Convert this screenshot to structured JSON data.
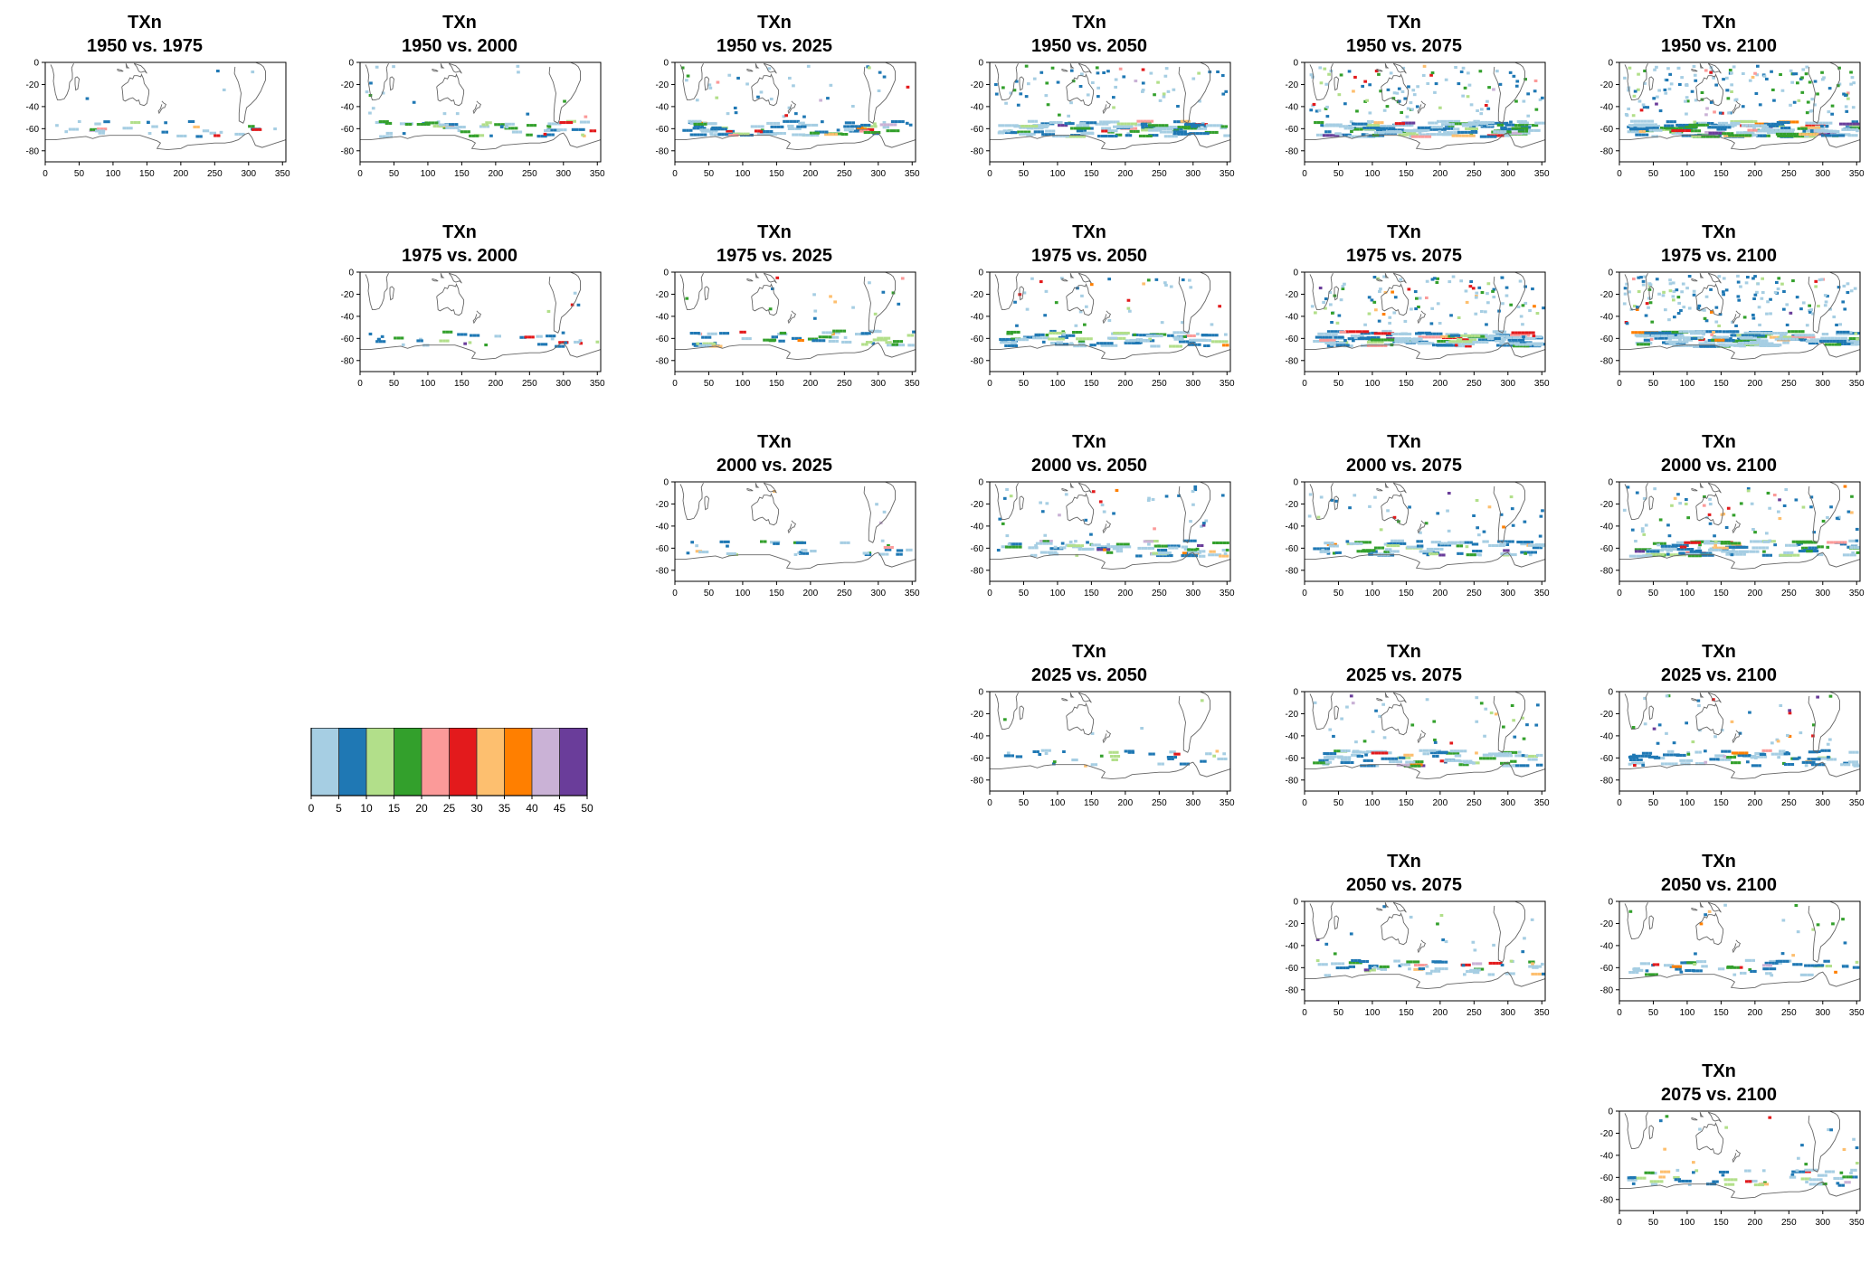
{
  "chart_data": {
    "type": "heatmap",
    "variable": "TXn",
    "x_ticks": [
      0,
      50,
      100,
      150,
      200,
      250,
      300,
      350
    ],
    "y_ticks": [
      0,
      -20,
      -40,
      -60,
      -80
    ],
    "xlim": [
      0,
      355
    ],
    "ylim": [
      -90,
      0
    ],
    "grid": false,
    "legend": {
      "position": "left-middle",
      "colors": [
        "#a6cee3",
        "#1f78b4",
        "#b2df8a",
        "#33a02c",
        "#fb9a99",
        "#e31a1c",
        "#fdbf6f",
        "#ff7f00",
        "#cab2d6",
        "#6a3d9a"
      ],
      "tick_labels": [
        "0",
        "5",
        "10",
        "15",
        "20",
        "25",
        "30",
        "35",
        "40",
        "45",
        "50"
      ]
    },
    "panels": [
      {
        "title_line1": "TXn",
        "title_line2": "1950 vs. 1975",
        "row": 0,
        "col": 0,
        "density": 1
      },
      {
        "title_line1": "TXn",
        "title_line2": "1950 vs. 2000",
        "row": 0,
        "col": 1,
        "density": 2
      },
      {
        "title_line1": "TXn",
        "title_line2": "1950 vs. 2025",
        "row": 0,
        "col": 2,
        "density": 3
      },
      {
        "title_line1": "TXn",
        "title_line2": "1950 vs. 2050",
        "row": 0,
        "col": 3,
        "density": 4
      },
      {
        "title_line1": "TXn",
        "title_line2": "1950 vs. 2075",
        "row": 0,
        "col": 4,
        "density": 5
      },
      {
        "title_line1": "TXn",
        "title_line2": "1950 vs. 2100",
        "row": 0,
        "col": 5,
        "density": 6
      },
      {
        "title_line1": "TXn",
        "title_line2": "1975 vs. 2000",
        "row": 1,
        "col": 1,
        "density": 1
      },
      {
        "title_line1": "TXn",
        "title_line2": "1975 vs. 2025",
        "row": 1,
        "col": 2,
        "density": 2
      },
      {
        "title_line1": "TXn",
        "title_line2": "1975 vs. 2050",
        "row": 1,
        "col": 3,
        "density": 3
      },
      {
        "title_line1": "TXn",
        "title_line2": "1975 vs. 2075",
        "row": 1,
        "col": 4,
        "density": 5
      },
      {
        "title_line1": "TXn",
        "title_line2": "1975 vs. 2100",
        "row": 1,
        "col": 5,
        "density": 6
      },
      {
        "title_line1": "TXn",
        "title_line2": "2000 vs. 2025",
        "row": 2,
        "col": 2,
        "density": 1
      },
      {
        "title_line1": "TXn",
        "title_line2": "2000 vs. 2050",
        "row": 2,
        "col": 3,
        "density": 3
      },
      {
        "title_line1": "TXn",
        "title_line2": "2000 vs. 2075",
        "row": 2,
        "col": 4,
        "density": 3
      },
      {
        "title_line1": "TXn",
        "title_line2": "2000 vs. 2100",
        "row": 2,
        "col": 5,
        "density": 4
      },
      {
        "title_line1": "TXn",
        "title_line2": "2025 vs. 2050",
        "row": 3,
        "col": 3,
        "density": 1
      },
      {
        "title_line1": "TXn",
        "title_line2": "2025 vs. 2075",
        "row": 3,
        "col": 4,
        "density": 3
      },
      {
        "title_line1": "TXn",
        "title_line2": "2025 vs. 2100",
        "row": 3,
        "col": 5,
        "density": 3
      },
      {
        "title_line1": "TXn",
        "title_line2": "2050 vs. 2075",
        "row": 4,
        "col": 4,
        "density": 2
      },
      {
        "title_line1": "TXn",
        "title_line2": "2050 vs. 2100",
        "row": 4,
        "col": 5,
        "density": 2
      },
      {
        "title_line1": "TXn",
        "title_line2": "2075 vs. 2100",
        "row": 5,
        "col": 5,
        "density": 2
      }
    ]
  }
}
